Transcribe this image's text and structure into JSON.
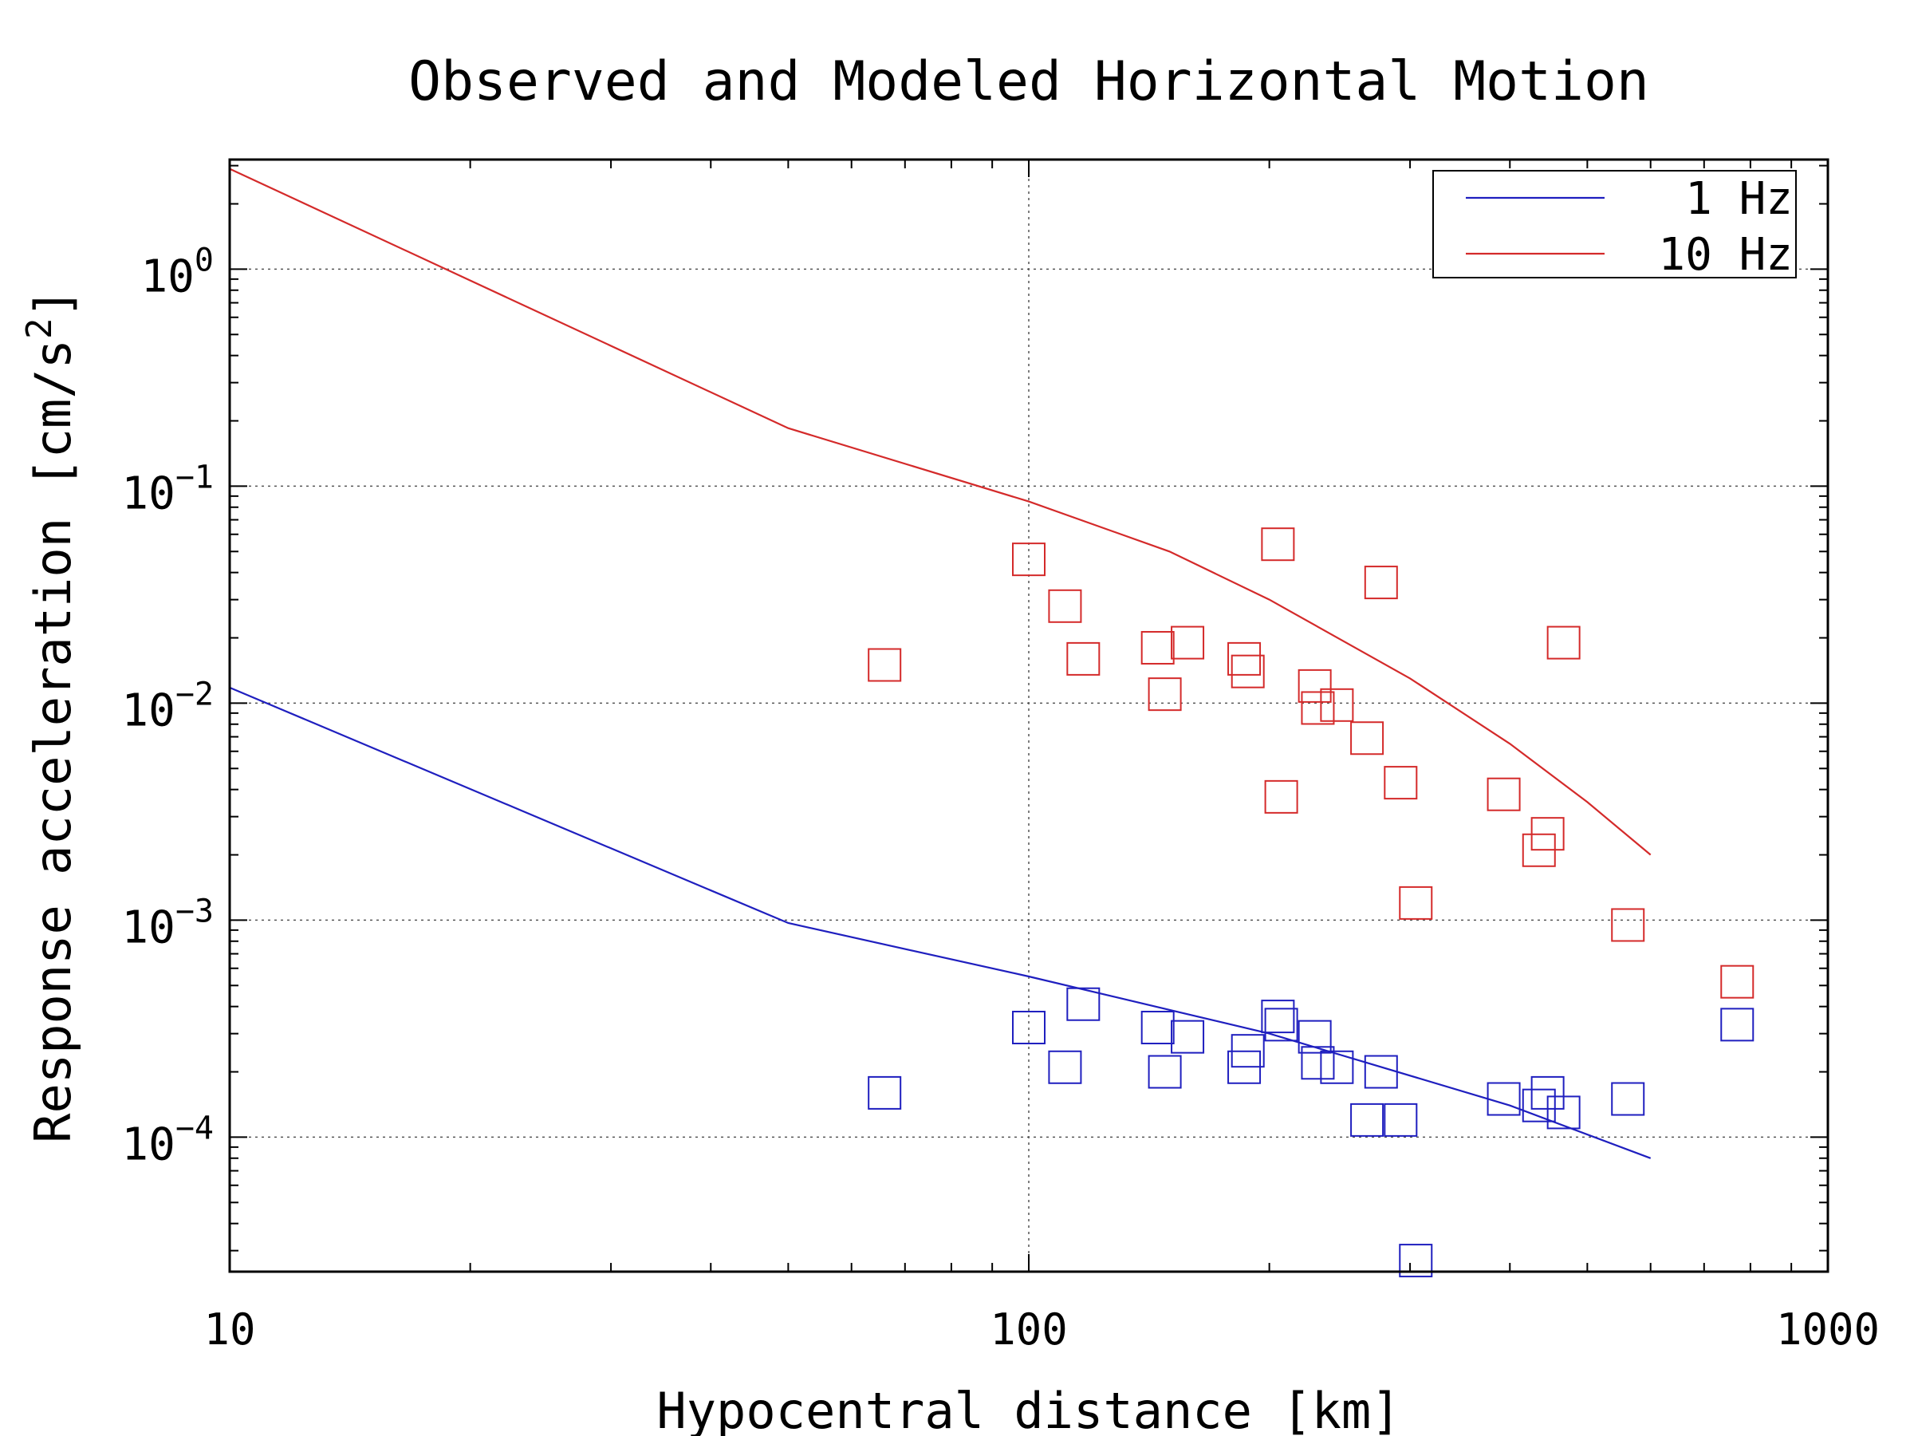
{
  "chart_data": {
    "type": "scatter",
    "title": "Observed and Modeled Horizontal Motion",
    "xlabel": "Hypocentral distance [km]",
    "ylabel": "Response acceleration [cm/s",
    "ylabel_sup": "2",
    "ylabel_close": "]",
    "xscale": "log",
    "yscale": "log",
    "xlim": [
      10,
      1000
    ],
    "ylim": [
      2.4e-05,
      3.2
    ],
    "grid": true,
    "legend_position": "top-right",
    "x_ticks": [
      {
        "value": 10,
        "label": "10"
      },
      {
        "value": 100,
        "label": "100"
      },
      {
        "value": 1000,
        "label": "1000"
      }
    ],
    "y_ticks": [
      {
        "value": 0.0001,
        "base": "10",
        "exp": "−4"
      },
      {
        "value": 0.001,
        "base": "10",
        "exp": "−3"
      },
      {
        "value": 0.01,
        "base": "10",
        "exp": "−2"
      },
      {
        "value": 0.1,
        "base": "10",
        "exp": "−1"
      },
      {
        "value": 1,
        "base": "10",
        "exp": "0"
      }
    ],
    "series": [
      {
        "name": "1 Hz",
        "color": "#1f1fbf",
        "line": [
          [
            10,
            0.0118
          ],
          [
            50,
            0.00097
          ],
          [
            100,
            0.00055
          ],
          [
            200,
            0.0003
          ],
          [
            400,
            0.00014
          ],
          [
            600,
            8e-05
          ]
        ],
        "points": [
          [
            66,
            0.00016
          ],
          [
            100,
            0.00032
          ],
          [
            111,
            0.00021
          ],
          [
            117,
            0.00041
          ],
          [
            145,
            0.00032
          ],
          [
            148,
            0.0002
          ],
          [
            158,
            0.00029
          ],
          [
            186,
            0.00021
          ],
          [
            188,
            0.00025
          ],
          [
            205,
            0.00036
          ],
          [
            207,
            0.00033
          ],
          [
            228,
            0.00029
          ],
          [
            230,
            0.00022
          ],
          [
            243,
            0.00021
          ],
          [
            265,
            0.00012
          ],
          [
            276,
            0.0002
          ],
          [
            292,
            0.00012
          ],
          [
            305,
            2.7e-05
          ],
          [
            393,
            0.00015
          ],
          [
            435,
            0.00014
          ],
          [
            446,
            0.00016
          ],
          [
            467,
            0.00013
          ],
          [
            562,
            0.00015
          ],
          [
            770,
            0.00033
          ]
        ]
      },
      {
        "name": "10 Hz",
        "color": "#d42a2a",
        "line": [
          [
            10,
            2.9
          ],
          [
            50,
            0.185
          ],
          [
            100,
            0.085
          ],
          [
            150,
            0.05
          ],
          [
            200,
            0.03
          ],
          [
            300,
            0.013
          ],
          [
            400,
            0.0065
          ],
          [
            500,
            0.0035
          ],
          [
            600,
            0.002
          ]
        ],
        "points": [
          [
            66,
            0.015
          ],
          [
            100,
            0.046
          ],
          [
            111,
            0.028
          ],
          [
            117,
            0.016
          ],
          [
            145,
            0.018
          ],
          [
            148,
            0.011
          ],
          [
            158,
            0.019
          ],
          [
            186,
            0.016
          ],
          [
            188,
            0.014
          ],
          [
            205,
            0.054
          ],
          [
            207,
            0.0037
          ],
          [
            228,
            0.012
          ],
          [
            230,
            0.0095
          ],
          [
            243,
            0.0098
          ],
          [
            265,
            0.0069
          ],
          [
            276,
            0.036
          ],
          [
            292,
            0.0043
          ],
          [
            305,
            0.0012
          ],
          [
            393,
            0.0038
          ],
          [
            435,
            0.0021
          ],
          [
            446,
            0.0025
          ],
          [
            467,
            0.019
          ],
          [
            562,
            0.00095
          ],
          [
            770,
            0.00052
          ]
        ]
      }
    ]
  }
}
